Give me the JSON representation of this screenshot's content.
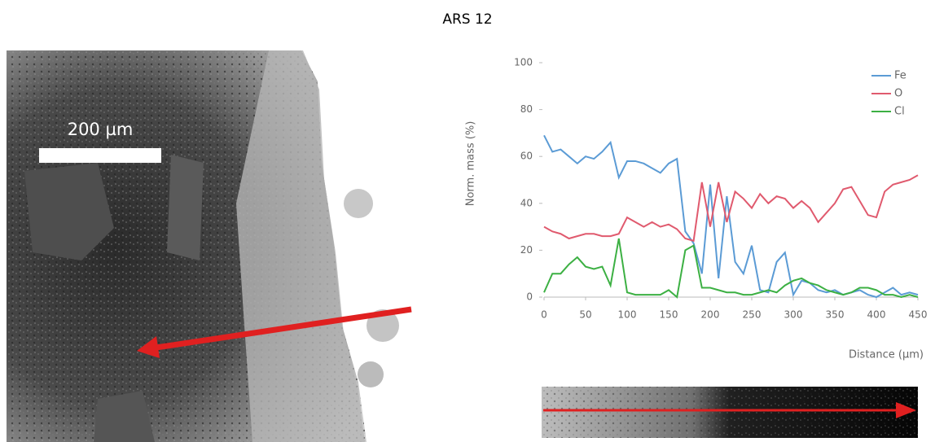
{
  "title": "ARS 12",
  "scale_bar_label": "200 µm",
  "chart_data": {
    "type": "line",
    "ylabel": "Norm. mass (%)",
    "xlabel": "Distance (µm)",
    "xlim": [
      0,
      450
    ],
    "xticks": [
      0,
      50,
      100,
      150,
      200,
      250,
      300,
      350,
      400,
      450
    ],
    "ylim": [
      0,
      100
    ],
    "yticks": [
      0,
      20,
      40,
      60,
      80,
      100
    ],
    "legend": "upper right",
    "x": [
      0,
      10,
      20,
      30,
      40,
      50,
      60,
      70,
      80,
      90,
      100,
      110,
      120,
      130,
      140,
      150,
      160,
      170,
      180,
      190,
      200,
      210,
      220,
      230,
      240,
      250,
      260,
      270,
      280,
      290,
      300,
      310,
      320,
      330,
      340,
      350,
      360,
      370,
      380,
      390,
      400,
      410,
      420,
      430,
      440,
      450
    ],
    "series": [
      {
        "name": "Fe",
        "color": "#5b9bd5",
        "values": [
          69,
          62,
          63,
          60,
          57,
          60,
          59,
          62,
          66,
          51,
          58,
          58,
          57,
          55,
          53,
          57,
          59,
          28,
          23,
          10,
          48,
          8,
          43,
          15,
          10,
          22,
          3,
          2,
          15,
          19,
          1,
          7,
          6,
          3,
          2,
          3,
          1,
          2,
          3,
          1,
          0,
          2,
          4,
          1,
          2,
          1
        ]
      },
      {
        "name": "O",
        "color": "#e05a6e",
        "values": [
          30,
          28,
          27,
          25,
          26,
          27,
          27,
          26,
          26,
          27,
          34,
          32,
          30,
          32,
          30,
          31,
          29,
          25,
          24,
          49,
          30,
          49,
          32,
          45,
          42,
          38,
          44,
          40,
          43,
          42,
          38,
          41,
          38,
          32,
          36,
          40,
          46,
          47,
          41,
          35,
          34,
          45,
          48,
          49,
          50,
          52
        ]
      },
      {
        "name": "Cl",
        "color": "#3cb043",
        "values": [
          2,
          10,
          10,
          14,
          17,
          13,
          12,
          13,
          5,
          25,
          2,
          1,
          1,
          1,
          1,
          3,
          0,
          20,
          22,
          4,
          4,
          3,
          2,
          2,
          1,
          1,
          2,
          3,
          2,
          5,
          7,
          8,
          6,
          5,
          3,
          2,
          1,
          2,
          4,
          4,
          3,
          1,
          1,
          0,
          1,
          0
        ]
      }
    ]
  }
}
